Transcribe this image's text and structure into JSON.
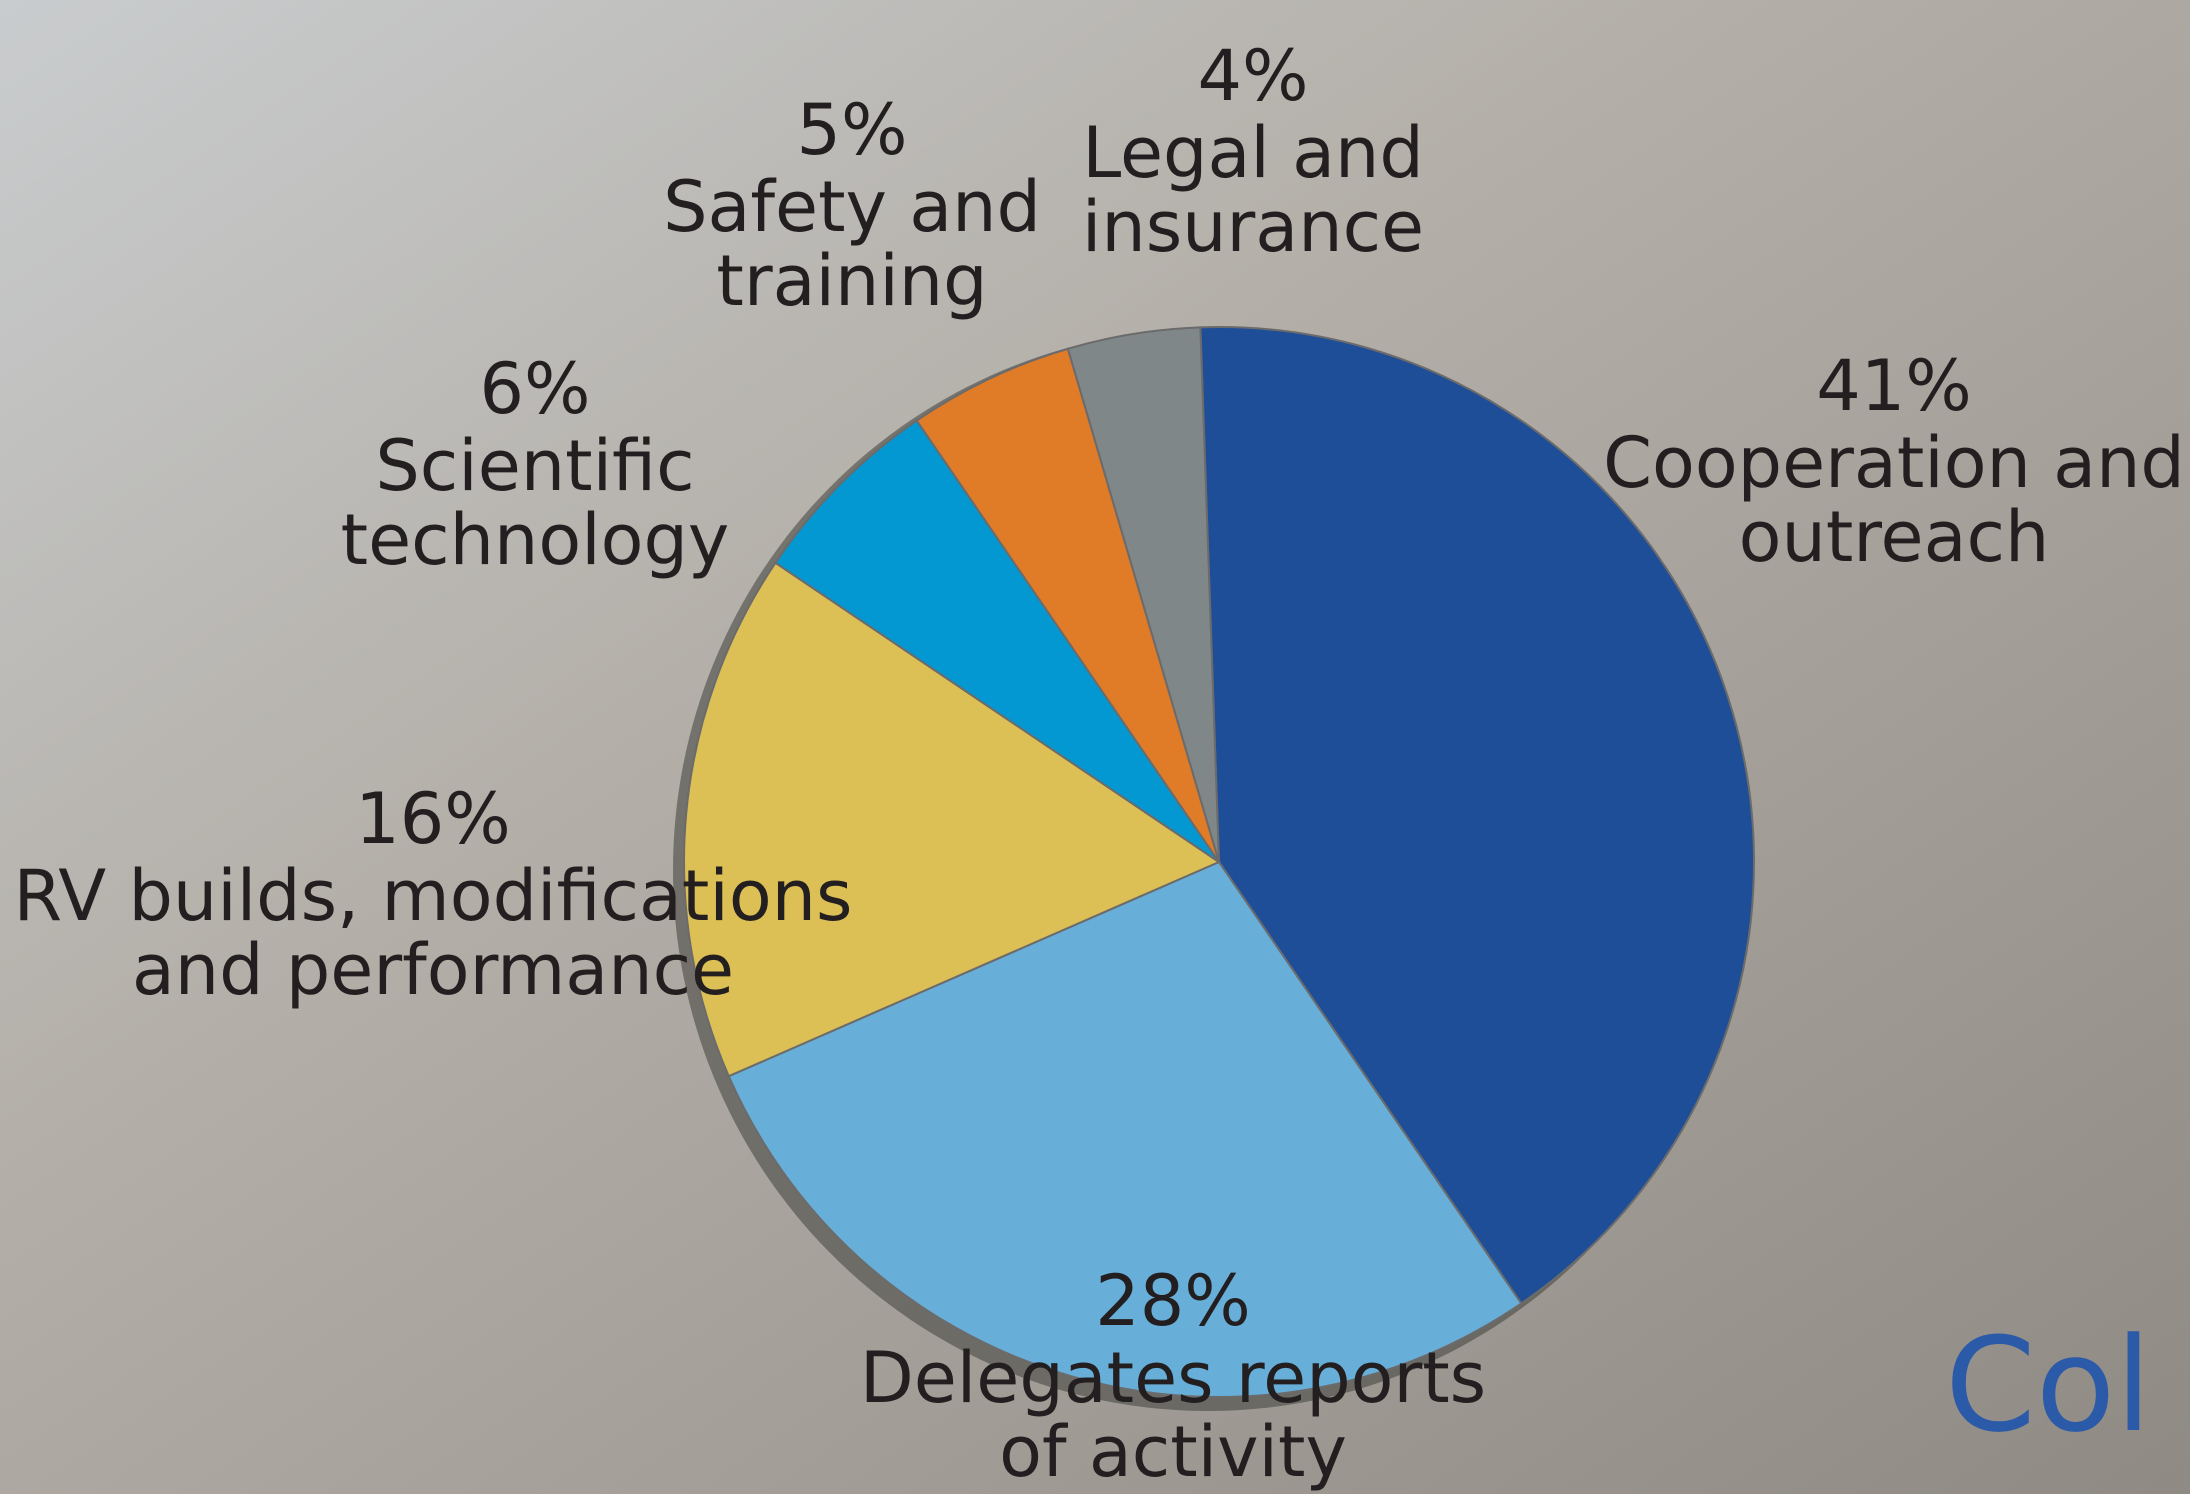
{
  "chart_data": {
    "type": "pie",
    "categories": [
      "Cooperation and\noutreach",
      "Delegates reports\nof activity",
      "RV builds, modifications\nand performance",
      "Scientific\ntechnology",
      "Safety and\ntraining",
      "Legal and\ninsurance"
    ],
    "values": [
      41,
      28,
      16,
      6,
      5,
      4
    ],
    "value_labels": [
      "41%",
      "28%",
      "16%",
      "6%",
      "5%",
      "4%"
    ],
    "colors": [
      "#1f4e98",
      "#67afd9",
      "#dcbf55",
      "#0398d1",
      "#e07b28",
      "#808789"
    ],
    "corner_text": "Col"
  }
}
